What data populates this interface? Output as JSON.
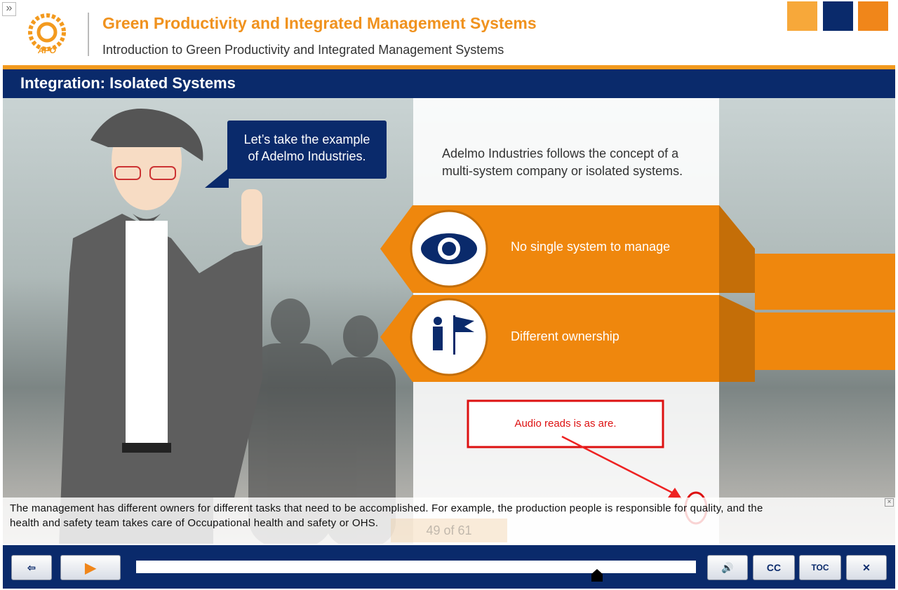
{
  "toggle": "»",
  "header": {
    "logo": "APO",
    "title": "Green Productivity and Integrated Management Systems",
    "subtitle": "Introduction to Green Productivity and Integrated Management Systems"
  },
  "slide": {
    "title": "Integration: Isolated Systems",
    "bubble": [
      "Let’s take the example",
      "of Adelmo Industries."
    ],
    "intro": [
      "Adelmo Industries follows the concept of a",
      "multi-system company or isolated systems."
    ],
    "items": [
      "No single system to manage",
      "Different ownership"
    ],
    "annotation": "Audio reads is as are."
  },
  "caption": [
    "The management has different owners for different tasks that need to be accomplished. For example, the production people is responsible for quality, and the",
    "health and safety team takes care of Occupational health and safety or OHS."
  ],
  "player": {
    "page": "49 of 61",
    "cc": "CC",
    "toc": "TOC"
  }
}
